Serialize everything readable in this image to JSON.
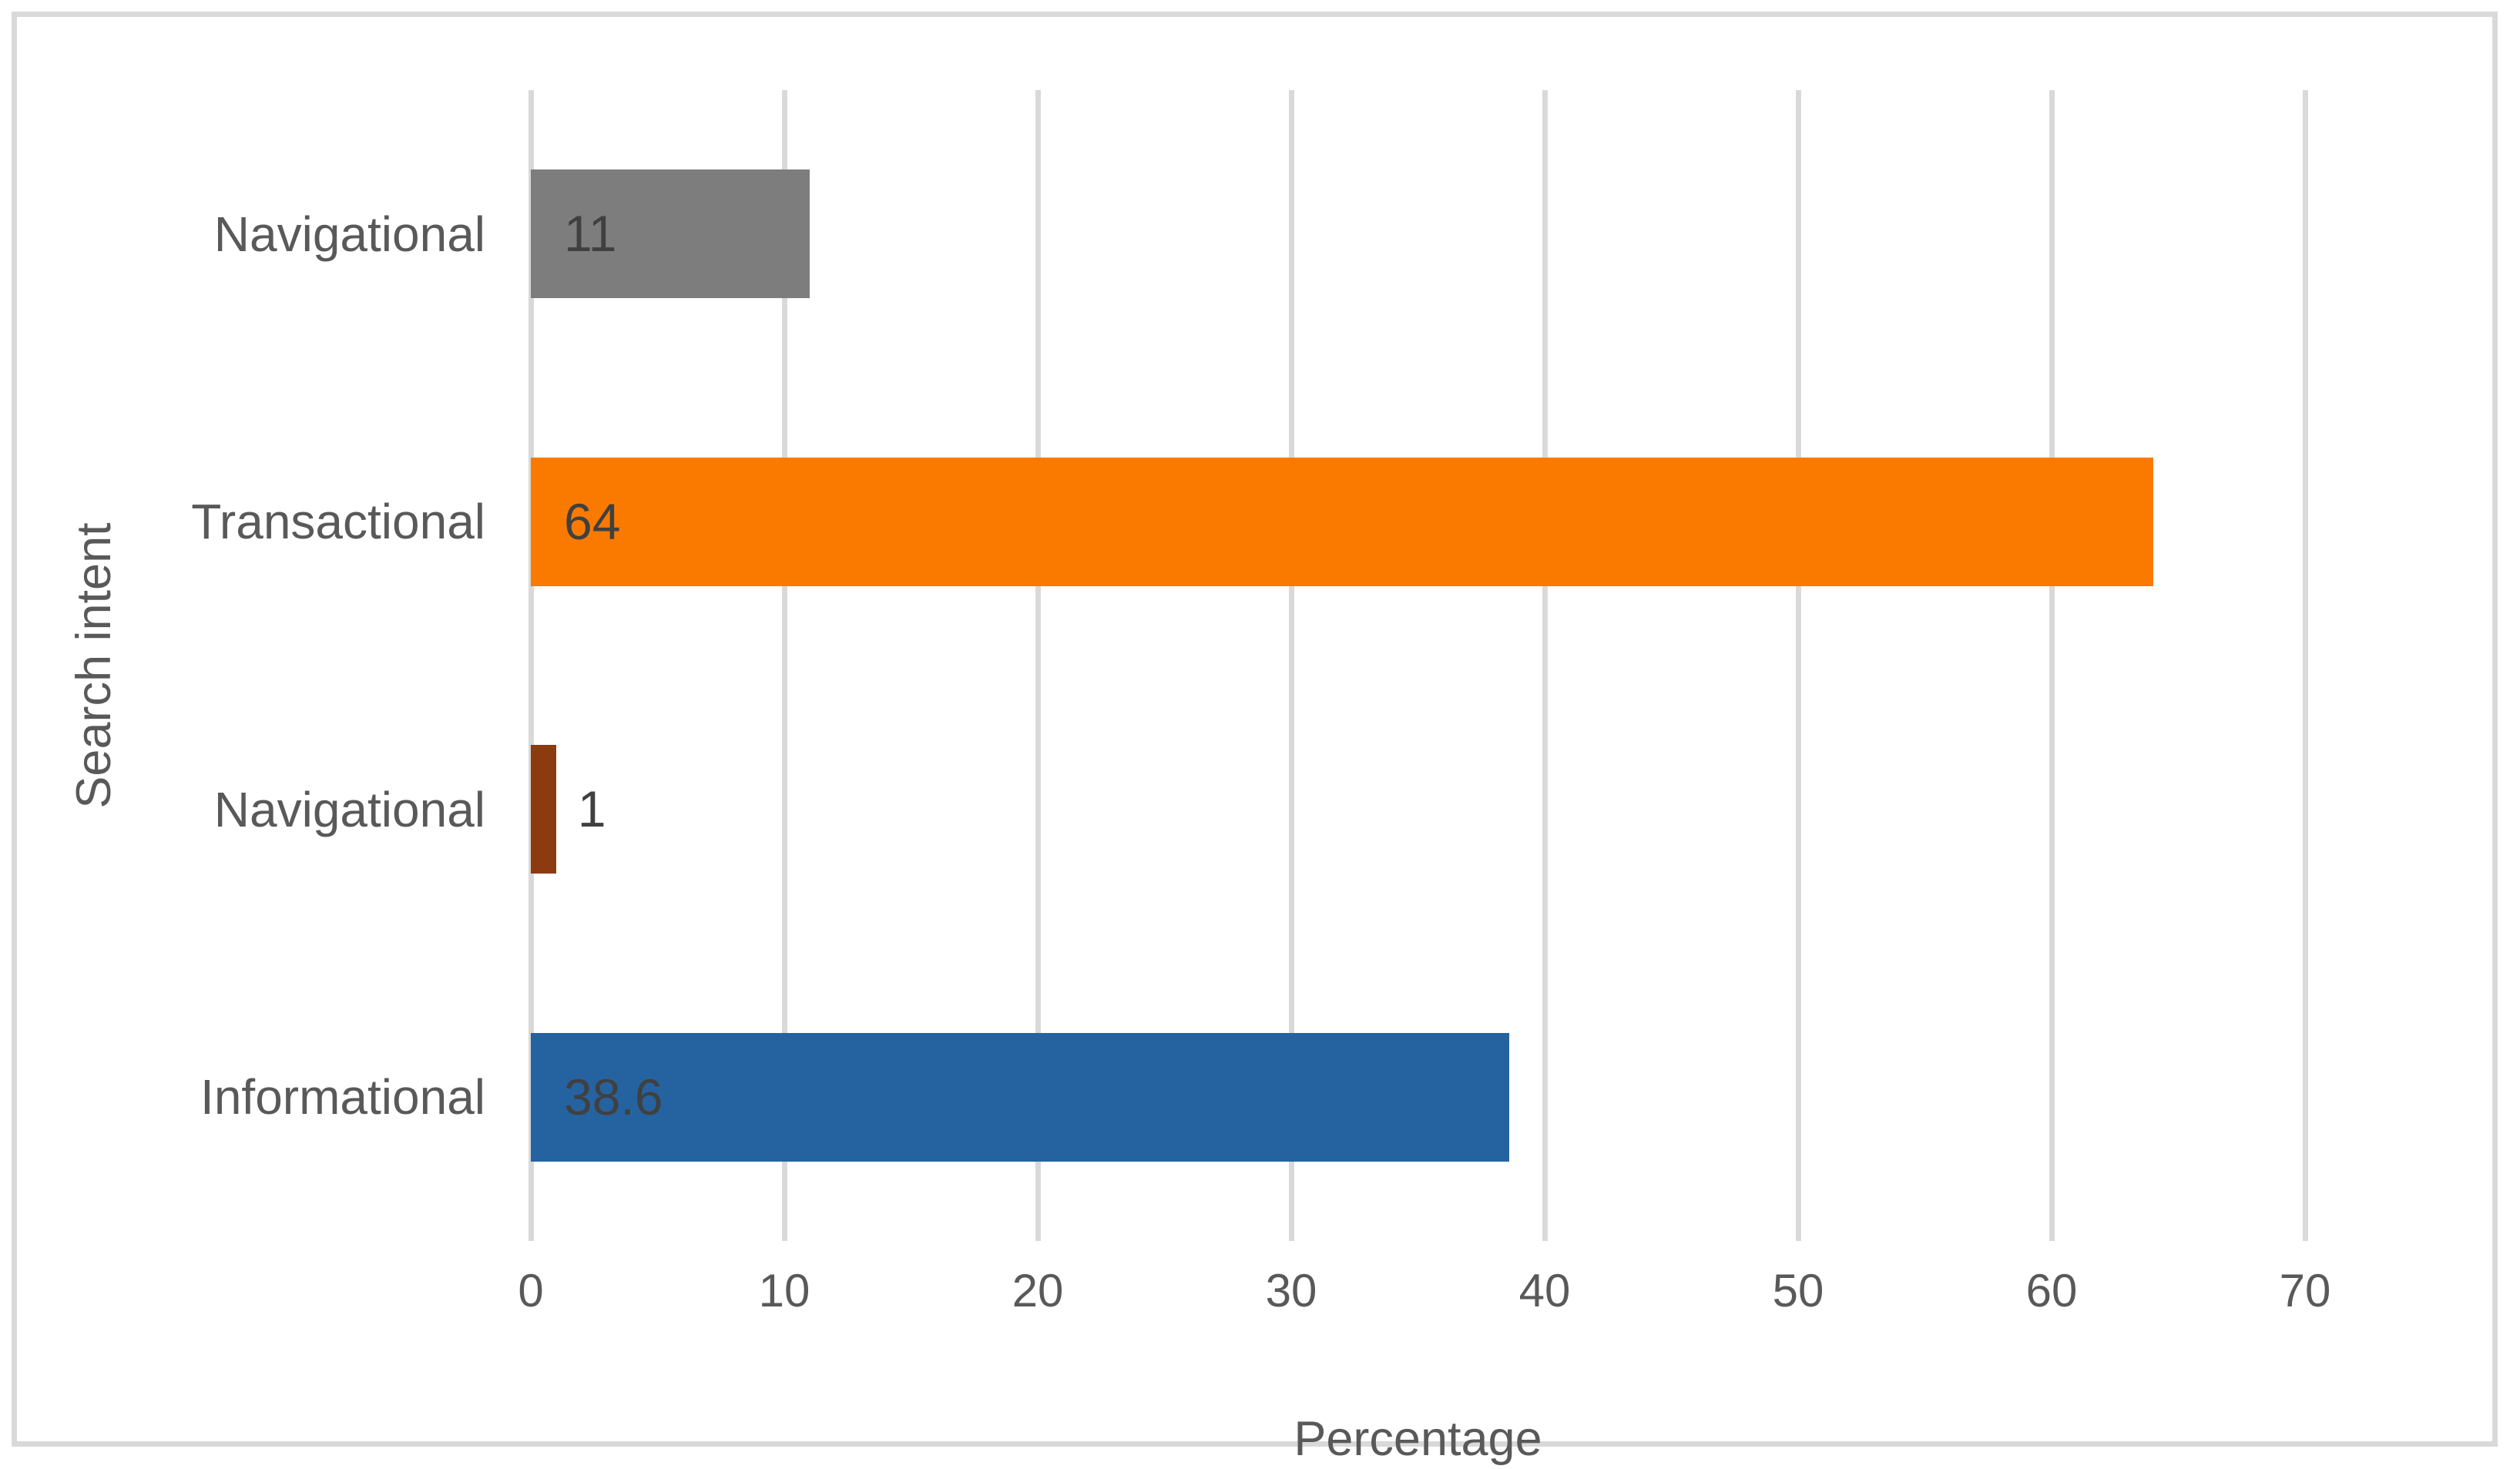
{
  "chart_data": {
    "type": "bar",
    "orientation": "horizontal",
    "title": "",
    "xlabel": "Percentage",
    "ylabel": "Search intent",
    "categories": [
      "Navigational",
      "Transactional",
      "Navigational",
      "Informational"
    ],
    "values": [
      11,
      64,
      1,
      38.6
    ],
    "data_labels": [
      "11",
      "64",
      "1",
      "38.6"
    ],
    "bar_colors": [
      "#7D7D7D",
      "#FA7A00",
      "#8C3A10",
      "#2563A0"
    ],
    "xlim": [
      0,
      70
    ],
    "xticks": [
      "0",
      "10",
      "20",
      "30",
      "40",
      "50",
      "60",
      "70"
    ],
    "grid": "vertical-only",
    "legend": "none"
  },
  "colors": {
    "background": "#FFFFFF",
    "frame_border": "#D9D9D9",
    "gridline": "#D9D9D9",
    "axis_text": "#595959",
    "data_label_text": "#404040"
  }
}
